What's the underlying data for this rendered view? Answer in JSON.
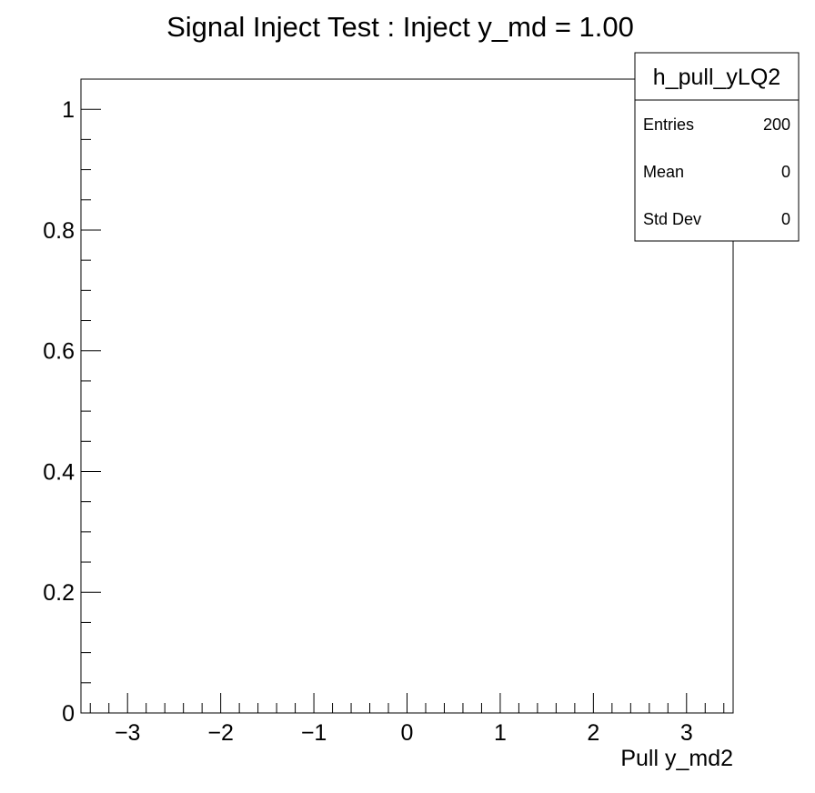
{
  "chart_data": {
    "type": "histogram",
    "title": "Signal Inject Test : Inject y_md = 1.00",
    "xlabel": "Pull y_md2",
    "ylabel": "",
    "xlim": [
      -3.5,
      3.5
    ],
    "ylim": [
      0,
      1.05
    ],
    "x_tick_labels": [
      "−3",
      "−2",
      "−1",
      "0",
      "1",
      "2",
      "3"
    ],
    "y_tick_labels": [
      "0",
      "0.2",
      "0.4",
      "0.6",
      "0.8",
      "1"
    ],
    "values": [],
    "grid": false,
    "stats_box": {
      "name": "h_pull_yLQ2",
      "entries": [
        {
          "label": "Entries",
          "value": "200"
        },
        {
          "label": "Mean",
          "value": "0"
        },
        {
          "label": "Std Dev",
          "value": "0"
        }
      ],
      "placement": "top-right"
    }
  }
}
